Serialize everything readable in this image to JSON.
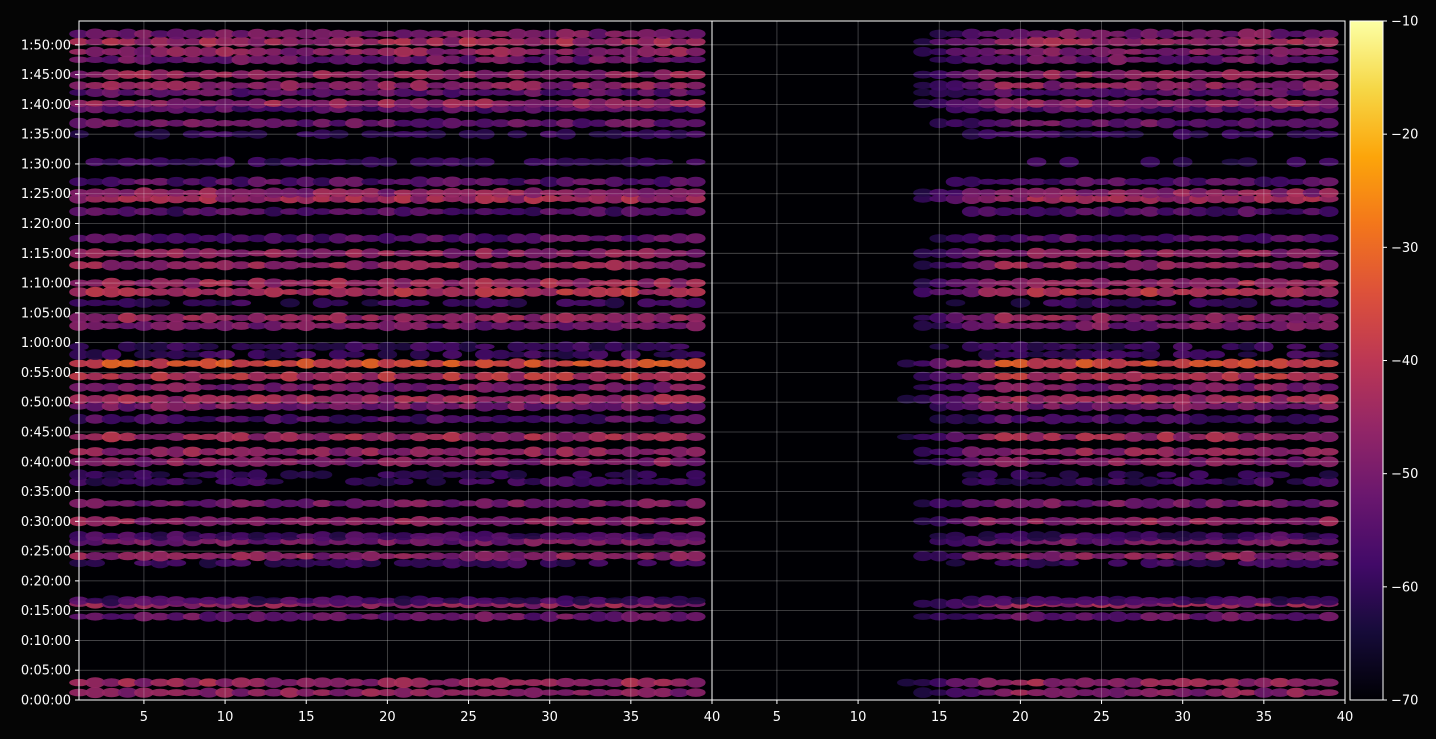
{
  "chart_data": {
    "type": "heatmap",
    "panels": [
      {
        "name": "",
        "xlim": [
          1,
          40
        ],
        "x_ticks": [
          "5",
          "10",
          "15",
          "20",
          "25",
          "30",
          "35",
          "40"
        ]
      },
      {
        "name": "",
        "xlim": [
          1,
          40
        ],
        "x_ticks": [
          "5",
          "10",
          "15",
          "20",
          "25",
          "30",
          "35",
          "40"
        ]
      }
    ],
    "y_unit": "seconds",
    "ylim": [
      0,
      6840
    ],
    "y_ticks": [
      "0:00:00",
      "0:05:00",
      "0:10:00",
      "0:15:00",
      "0:20:00",
      "0:25:00",
      "0:30:00",
      "0:35:00",
      "0:40:00",
      "0:45:00",
      "0:50:00",
      "0:55:00",
      "1:00:00",
      "1:05:00",
      "1:10:00",
      "1:15:00",
      "1:20:00",
      "1:25:00",
      "1:30:00",
      "1:35:00",
      "1:40:00",
      "1:45:00",
      "1:50:00"
    ],
    "colorbar": {
      "min": -70,
      "max": -10,
      "ticks": [
        "−10",
        "−20",
        "−30",
        "−40",
        "−50",
        "−60",
        "−70"
      ],
      "colormap": "inferno"
    },
    "grid": true,
    "bands": [
      {
        "t": 75,
        "level": -47
      },
      {
        "t": 175,
        "level": -45
      },
      {
        "t": 840,
        "level": -52
      },
      {
        "t": 970,
        "level": -46
      },
      {
        "t": 1000,
        "level": -58
      },
      {
        "t": 1380,
        "level": -60
      },
      {
        "t": 1450,
        "level": -47
      },
      {
        "t": 1600,
        "level": -51
      },
      {
        "t": 1650,
        "level": -58
      },
      {
        "t": 1800,
        "level": -46
      },
      {
        "t": 1980,
        "level": -50
      },
      {
        "t": 2200,
        "level": -60
      },
      {
        "t": 2270,
        "level": -62
      },
      {
        "t": 2400,
        "level": -48
      },
      {
        "t": 2500,
        "level": -46
      },
      {
        "t": 2650,
        "level": -44
      },
      {
        "t": 2830,
        "level": -56
      },
      {
        "t": 2960,
        "level": -50
      },
      {
        "t": 3030,
        "level": -44
      },
      {
        "t": 3150,
        "level": -49
      },
      {
        "t": 3260,
        "level": -41
      },
      {
        "t": 3390,
        "level": -35
      },
      {
        "t": 3480,
        "level": -60
      },
      {
        "t": 3560,
        "level": -60
      },
      {
        "t": 3770,
        "level": -50
      },
      {
        "t": 3850,
        "level": -46
      },
      {
        "t": 4000,
        "level": -60
      },
      {
        "t": 4110,
        "level": -41
      },
      {
        "t": 4200,
        "level": -44
      },
      {
        "t": 4380,
        "level": -46
      },
      {
        "t": 4500,
        "level": -47
      },
      {
        "t": 4650,
        "level": -55
      },
      {
        "t": 4920,
        "level": -56
      },
      {
        "t": 5050,
        "level": -44
      },
      {
        "t": 5110,
        "level": -47
      },
      {
        "t": 5220,
        "level": -55
      },
      {
        "t": 5420,
        "level": -61
      },
      {
        "t": 5700,
        "level": -61
      },
      {
        "t": 5810,
        "level": -52
      },
      {
        "t": 5960,
        "level": -55
      },
      {
        "t": 6010,
        "level": -46
      },
      {
        "t": 6120,
        "level": -54
      },
      {
        "t": 6190,
        "level": -47
      },
      {
        "t": 6300,
        "level": -46
      },
      {
        "t": 6450,
        "level": -52
      },
      {
        "t": 6530,
        "level": -47
      },
      {
        "t": 6630,
        "level": -44
      },
      {
        "t": 6710,
        "level": -50
      }
    ]
  }
}
